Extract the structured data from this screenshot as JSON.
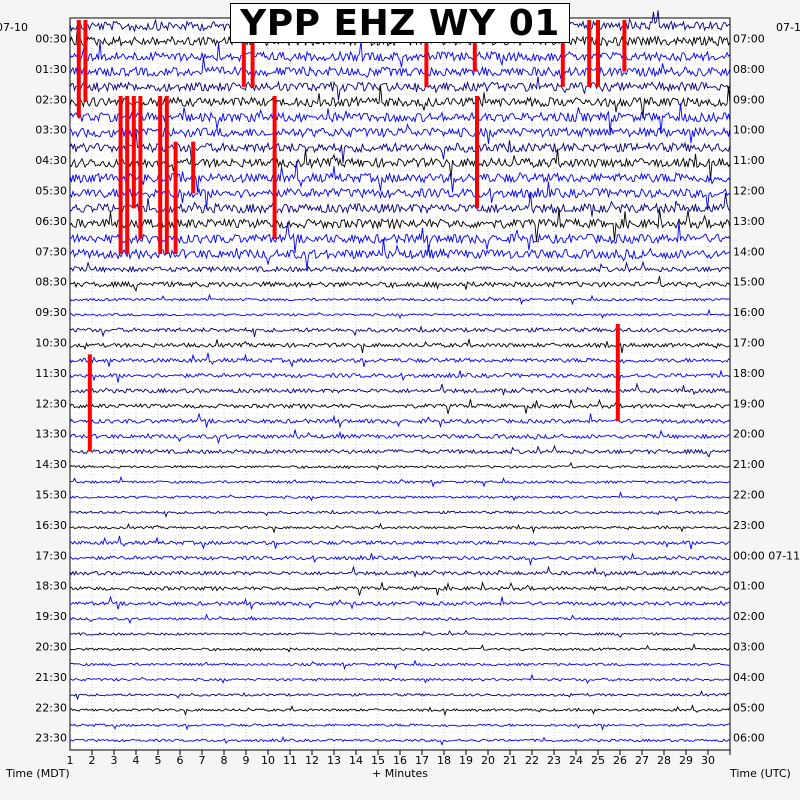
{
  "chart_data": {
    "type": "line",
    "title": "YPP EHZ WY 01",
    "xlabel": "+ Minutes",
    "left_axis_label": "Time (MDT)",
    "right_axis_label": "Time (UTC)",
    "left_date_label": "07-10",
    "right_date_label": "07-1",
    "right_rollover_date": "07-11",
    "x_ticks": [
      "1",
      "2",
      "3",
      "4",
      "5",
      "6",
      "7",
      "8",
      "9",
      "10",
      "11",
      "12",
      "13",
      "14",
      "15",
      "16",
      "17",
      "18",
      "19",
      "20",
      "21",
      "22",
      "23",
      "24",
      "25",
      "26",
      "27",
      "28",
      "29",
      "30"
    ],
    "xlim": [
      0,
      30
    ],
    "left_ticks": [
      "00:30",
      "01:30",
      "02:30",
      "03:30",
      "04:30",
      "05:30",
      "06:30",
      "07:30",
      "08:30",
      "09:30",
      "10:30",
      "11:30",
      "12:30",
      "13:30",
      "14:30",
      "15:30",
      "16:30",
      "17:30",
      "18:30",
      "19:30",
      "20:30",
      "21:30",
      "22:30",
      "23:30"
    ],
    "right_ticks": [
      "07:00",
      "08:00",
      "09:00",
      "10:00",
      "11:00",
      "12:00",
      "13:00",
      "14:00",
      "15:00",
      "16:00",
      "17:00",
      "18:00",
      "19:00",
      "20:00",
      "21:00",
      "22:00",
      "23:00",
      "00:00",
      "01:00",
      "02:00",
      "03:00",
      "04:00",
      "05:00",
      "06:00"
    ],
    "trace_colors": [
      "#000080",
      "#000000",
      "#0000ff",
      "#0000ff"
    ],
    "clip_color": "#ff0000",
    "grid": true
  }
}
